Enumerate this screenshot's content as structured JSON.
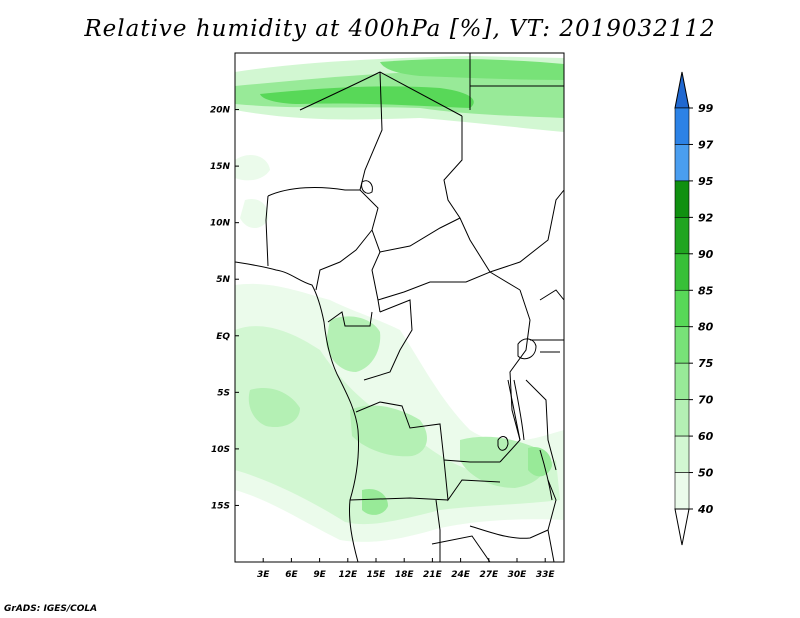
{
  "title": "Relative humidity at 400hPa [%], VT: 2019032112",
  "credit": "GrADS: IGES/COLA",
  "map": {
    "lon_range": [
      0,
      35
    ],
    "lat_range": [
      -20,
      25
    ],
    "lon_ticks": [
      {
        "value": 3,
        "label": "3E"
      },
      {
        "value": 6,
        "label": "6E"
      },
      {
        "value": 9,
        "label": "9E"
      },
      {
        "value": 12,
        "label": "12E"
      },
      {
        "value": 15,
        "label": "15E"
      },
      {
        "value": 18,
        "label": "18E"
      },
      {
        "value": 21,
        "label": "21E"
      },
      {
        "value": 24,
        "label": "24E"
      },
      {
        "value": 27,
        "label": "27E"
      },
      {
        "value": 30,
        "label": "30E"
      },
      {
        "value": 33,
        "label": "33E"
      }
    ],
    "lat_ticks": [
      {
        "value": 20,
        "label": "20N"
      },
      {
        "value": 15,
        "label": "15N"
      },
      {
        "value": 10,
        "label": "10N"
      },
      {
        "value": 5,
        "label": "5N"
      },
      {
        "value": 0,
        "label": "EQ"
      },
      {
        "value": -5,
        "label": "5S"
      },
      {
        "value": -10,
        "label": "10S"
      },
      {
        "value": -15,
        "label": "15S"
      }
    ]
  },
  "colorbar": {
    "levels": [
      {
        "value": "99",
        "color": "#1e6ed8"
      },
      {
        "value": "97",
        "color": "#2c82e6"
      },
      {
        "value": "95",
        "color": "#4a9ef0"
      },
      {
        "value": "92",
        "color": "#109010"
      },
      {
        "value": "90",
        "color": "#20a520"
      },
      {
        "value": "85",
        "color": "#38c038"
      },
      {
        "value": "80",
        "color": "#58d858"
      },
      {
        "value": "75",
        "color": "#78e278"
      },
      {
        "value": "70",
        "color": "#98ea98"
      },
      {
        "value": "60",
        "color": "#b4f0b4"
      },
      {
        "value": "50",
        "color": "#d2f7d2"
      },
      {
        "value": "40",
        "color": "#ebfbeb"
      }
    ],
    "top_color": "#2068d0",
    "bottom_color": "#ffffff"
  }
}
